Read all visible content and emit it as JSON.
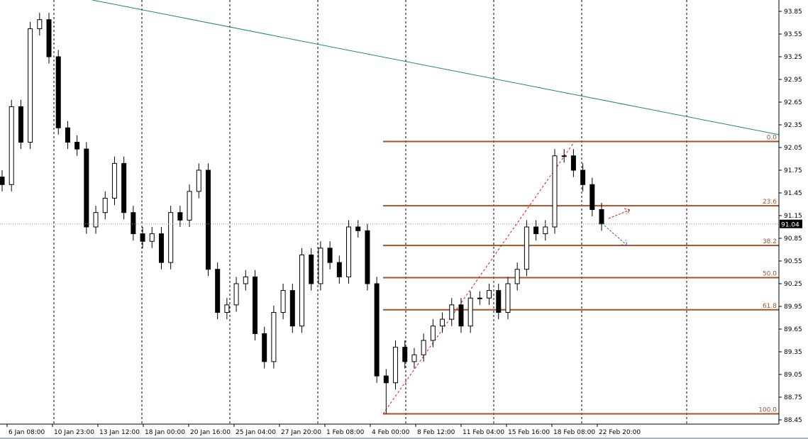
{
  "chart_data": {
    "type": "candlestick",
    "y_axis": {
      "min": 88.45,
      "max": 93.85,
      "step": 0.3,
      "position": "right"
    },
    "x_tick_labels": [
      "6 Jan 08:00",
      "10 Jan 23:00",
      "13 Jan 12:00",
      "18 Jan 00:00",
      "20 Jan 16:00",
      "25 Jan 04:00",
      "27 Jan 20:00",
      "1 Feb 08:00",
      "4 Feb 00:00",
      "8 Feb 12:00",
      "11 Feb 04:00",
      "15 Feb 16:00",
      "18 Feb 08:00",
      "22 Feb 20:00"
    ],
    "closes": [
      91.56,
      92.59,
      92.12,
      93.62,
      93.74,
      93.25,
      92.31,
      92.12,
      92.03,
      91.0,
      91.19,
      91.38,
      91.84,
      91.19,
      90.91,
      90.81,
      90.91,
      90.53,
      91.19,
      91.09,
      91.47,
      91.75,
      90.44,
      89.87,
      89.97,
      90.25,
      90.34,
      89.59,
      89.22,
      89.87,
      90.16,
      89.69,
      90.63,
      90.25,
      90.72,
      90.53,
      90.34,
      91.0,
      90.95,
      90.25,
      89.03,
      88.94,
      89.41,
      89.22,
      89.31,
      89.5,
      89.69,
      89.78,
      89.97,
      89.69,
      90.06,
      90.06,
      90.16,
      89.87,
      90.25,
      90.44,
      91.0,
      90.91,
      91.0,
      91.94,
      91.94,
      91.75,
      91.56,
      91.23,
      91.04
    ],
    "current_price": {
      "value": 91.04,
      "label": "91.04"
    },
    "fibonacci": {
      "high": 92.13,
      "low": 88.53,
      "color": "#a0522d",
      "levels": [
        {
          "ratio": 0.0,
          "label": "0.0"
        },
        {
          "ratio": 0.236,
          "label": "23.6"
        },
        {
          "ratio": 0.382,
          "label": "38.2"
        },
        {
          "ratio": 0.5,
          "label": "50.0"
        },
        {
          "ratio": 0.618,
          "label": "61.8"
        },
        {
          "ratio": 1.0,
          "label": "100.0"
        }
      ]
    },
    "trendline": {
      "color": "#1e8c5a",
      "from_price": 94.0,
      "to_price": 92.22
    },
    "grid": "vertical dashed",
    "colors": {
      "bull_body": "#ffffff",
      "bear_body": "#000000",
      "wick": "#000000",
      "up_arrow": "#ff0000",
      "down_arrow": "#4060b0"
    }
  }
}
